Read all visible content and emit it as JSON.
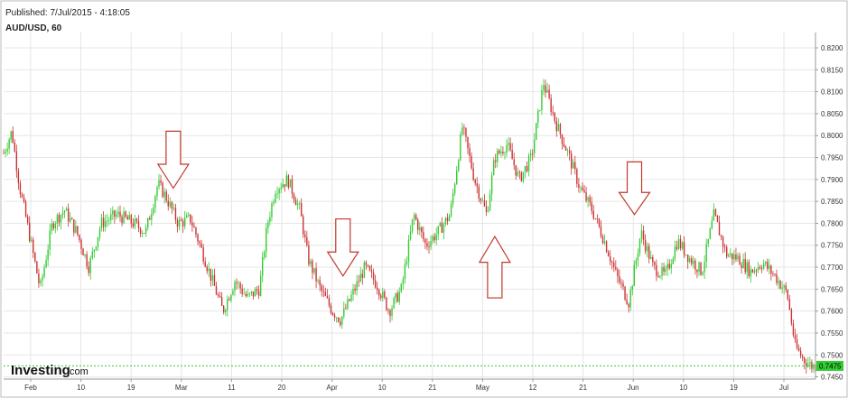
{
  "header": {
    "published": "Published: 7/Jul/2015 - 4:18:05",
    "symbol": "AUD/USD, 60"
  },
  "brand": {
    "name": "Investing",
    "suffix": ".com"
  },
  "current_price_label": "0.7475",
  "colors": {
    "up": "#33cc33",
    "down": "#cc3333",
    "grid": "#e6e6e6",
    "axis": "#999999",
    "price_line": "#33cc33",
    "price_badge": "#33cc33",
    "arrow_stroke": "#c0392b"
  },
  "chart_data": {
    "type": "candlestick",
    "title": "AUD/USD, 60",
    "x_tick_labels": [
      "Feb",
      "10",
      "19",
      "Mar",
      "11",
      "20",
      "Apr",
      "10",
      "21",
      "May",
      "12",
      "21",
      "Jun",
      "10",
      "19",
      "Jul"
    ],
    "y_tick_labels": [
      "0.8200",
      "0.8150",
      "0.8100",
      "0.8050",
      "0.8000",
      "0.7950",
      "0.7900",
      "0.7850",
      "0.7800",
      "0.7750",
      "0.7700",
      "0.7650",
      "0.7600",
      "0.7550",
      "0.7500",
      "0.7475",
      "0.7450"
    ],
    "ylim": [
      0.7445,
      0.8235
    ],
    "current_price": 0.7475,
    "grid": true,
    "path_points": [
      [
        0.0,
        0.796
      ],
      [
        0.01,
        0.801
      ],
      [
        0.02,
        0.788
      ],
      [
        0.03,
        0.779
      ],
      [
        0.045,
        0.765
      ],
      [
        0.06,
        0.78
      ],
      [
        0.075,
        0.783
      ],
      [
        0.09,
        0.778
      ],
      [
        0.105,
        0.77
      ],
      [
        0.12,
        0.78
      ],
      [
        0.14,
        0.782
      ],
      [
        0.16,
        0.78
      ],
      [
        0.175,
        0.778
      ],
      [
        0.19,
        0.789
      ],
      [
        0.2,
        0.786
      ],
      [
        0.215,
        0.78
      ],
      [
        0.23,
        0.781
      ],
      [
        0.24,
        0.776
      ],
      [
        0.255,
        0.768
      ],
      [
        0.27,
        0.76
      ],
      [
        0.285,
        0.767
      ],
      [
        0.3,
        0.763
      ],
      [
        0.315,
        0.765
      ],
      [
        0.325,
        0.78
      ],
      [
        0.335,
        0.788
      ],
      [
        0.35,
        0.79
      ],
      [
        0.365,
        0.783
      ],
      [
        0.375,
        0.772
      ],
      [
        0.39,
        0.765
      ],
      [
        0.405,
        0.76
      ],
      [
        0.415,
        0.758
      ],
      [
        0.43,
        0.764
      ],
      [
        0.445,
        0.77
      ],
      [
        0.46,
        0.766
      ],
      [
        0.475,
        0.76
      ],
      [
        0.49,
        0.765
      ],
      [
        0.505,
        0.782
      ],
      [
        0.52,
        0.775
      ],
      [
        0.535,
        0.778
      ],
      [
        0.55,
        0.782
      ],
      [
        0.565,
        0.802
      ],
      [
        0.58,
        0.79
      ],
      [
        0.595,
        0.782
      ],
      [
        0.605,
        0.795
      ],
      [
        0.62,
        0.798
      ],
      [
        0.635,
        0.79
      ],
      [
        0.65,
        0.795
      ],
      [
        0.665,
        0.812
      ],
      [
        0.68,
        0.803
      ],
      [
        0.695,
        0.796
      ],
      [
        0.71,
        0.788
      ],
      [
        0.725,
        0.783
      ],
      [
        0.74,
        0.776
      ],
      [
        0.755,
        0.768
      ],
      [
        0.77,
        0.762
      ],
      [
        0.785,
        0.778
      ],
      [
        0.8,
        0.77
      ],
      [
        0.815,
        0.768
      ],
      [
        0.83,
        0.776
      ],
      [
        0.845,
        0.772
      ],
      [
        0.86,
        0.769
      ],
      [
        0.875,
        0.782
      ],
      [
        0.89,
        0.773
      ],
      [
        0.905,
        0.772
      ],
      [
        0.92,
        0.769
      ],
      [
        0.935,
        0.771
      ],
      [
        0.95,
        0.768
      ],
      [
        0.965,
        0.764
      ],
      [
        0.975,
        0.752
      ],
      [
        0.985,
        0.749
      ],
      [
        0.995,
        0.7475
      ]
    ],
    "annotations": [
      {
        "type": "arrow-down",
        "x_frac": 0.209,
        "price_top": 0.801,
        "price_bottom": 0.788
      },
      {
        "type": "arrow-down",
        "x_frac": 0.418,
        "price_top": 0.781,
        "price_bottom": 0.768
      },
      {
        "type": "arrow-up",
        "x_frac": 0.605,
        "price_top": 0.777,
        "price_bottom": 0.763
      },
      {
        "type": "arrow-down",
        "x_frac": 0.777,
        "price_top": 0.794,
        "price_bottom": 0.782
      }
    ]
  }
}
